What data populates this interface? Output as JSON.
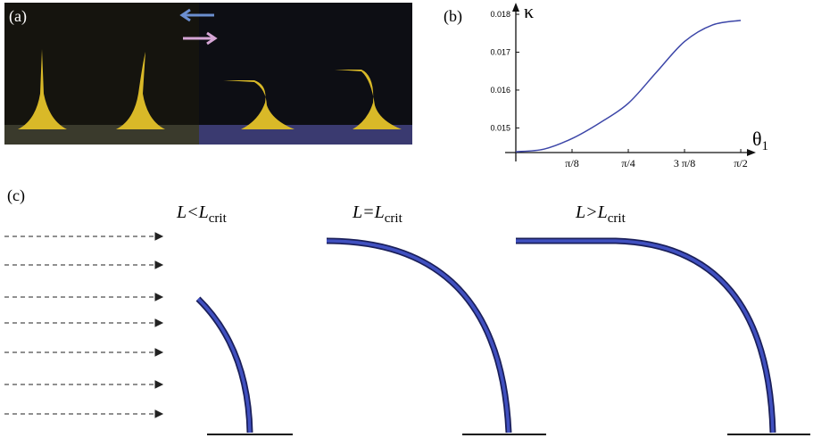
{
  "panel_labels": {
    "a": "(a)",
    "b": "(b)",
    "c": "(c)"
  },
  "chart_data": {
    "type": "line",
    "x": [
      0,
      0.19635,
      0.3927,
      0.58905,
      0.7854,
      0.98175,
      1.1781,
      1.37445,
      1.5708
    ],
    "values": [
      0.01437,
      0.01444,
      0.01472,
      0.01514,
      0.01565,
      0.01647,
      0.01728,
      0.01772,
      0.01784
    ],
    "color": "#3c46a8",
    "xlim": [
      0,
      1.664
    ],
    "ylim": [
      0.01435,
      0.01826
    ],
    "xticks": [
      {
        "value": 0.3927,
        "label": "π/8"
      },
      {
        "value": 0.7854,
        "label": "π/4"
      },
      {
        "value": 1.1781,
        "label": "3 π/8"
      },
      {
        "value": 1.5708,
        "label": "π/2"
      }
    ],
    "yticks": [
      0.015,
      0.016,
      0.017,
      0.018
    ],
    "y_label": "κ",
    "x_label": "θ",
    "x_label_subscript": "1"
  },
  "diagram": {
    "cases": [
      {
        "main": "L<L",
        "sub": "crit"
      },
      {
        "main": "L=L",
        "sub": "crit"
      },
      {
        "main": "L>L",
        "sub": "crit"
      }
    ]
  }
}
